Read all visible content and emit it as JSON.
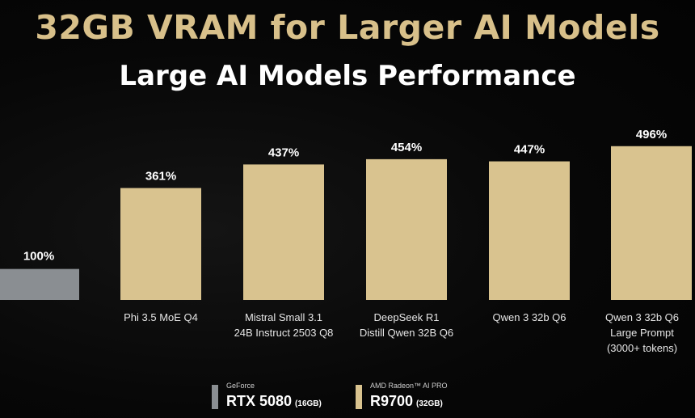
{
  "header": {
    "title": "32GB VRAM for Larger AI Models",
    "subtitle": "Large AI Models Performance"
  },
  "colors": {
    "background": "#050505",
    "title": "#d8c08a",
    "bar_r9700": "#d9c38f",
    "bar_rtx5080": "#8a8e92"
  },
  "chart_data": {
    "type": "bar",
    "title": "Large AI Models Performance",
    "ylim": [
      0,
      520
    ],
    "grid": false,
    "baseline": {
      "name": "RTX 5080",
      "value": 100,
      "label": "100%"
    },
    "categories": [
      [
        "Phi 3.5 MoE Q4"
      ],
      [
        "Mistral Small 3.1",
        "24B Instruct 2503 Q8"
      ],
      [
        "DeepSeek R1",
        "Distill Qwen 32B Q6"
      ],
      [
        "Qwen 3 32b Q6"
      ],
      [
        "Qwen 3 32b Q6",
        "Large Prompt",
        "(3000+ tokens)"
      ]
    ],
    "series": [
      {
        "name": "R9700",
        "values": [
          361,
          437,
          454,
          447,
          496
        ],
        "labels": [
          "361%",
          "437%",
          "454%",
          "447%",
          "496%"
        ]
      }
    ]
  },
  "legend": [
    {
      "brand": "GeForce",
      "name": "RTX 5080",
      "memory": "(16GB)",
      "color": "#8a8e92"
    },
    {
      "brand": "AMD Radeon™ AI PRO",
      "name": "R9700",
      "memory": "(32GB)",
      "color": "#d9c38f"
    }
  ]
}
